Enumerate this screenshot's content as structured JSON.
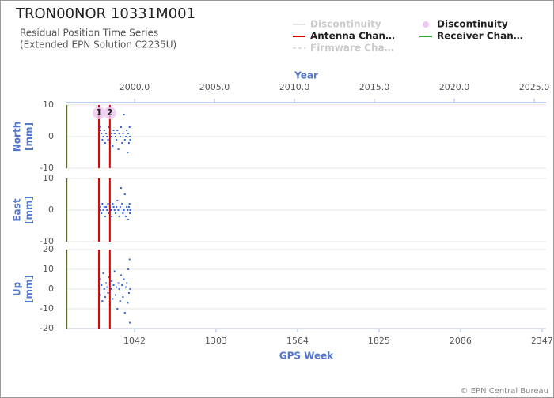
{
  "chart_data": {
    "type": "scatter",
    "title": "TRON00NOR 10331M001",
    "subtitle": [
      "Residual Position Time Series",
      "(Extended EPN Solution C2235U)"
    ],
    "legend": [
      {
        "name": "Discontinuity",
        "color": "#e6e6e6",
        "marker": "line",
        "active": false
      },
      {
        "name": "Discontinuity",
        "color": "#ecc8f0",
        "marker": "circle",
        "active": true
      },
      {
        "name": "Antenna Chan…",
        "color": "#e00000",
        "marker": "line",
        "active": true
      },
      {
        "name": "Receiver Chan…",
        "color": "#33aa33",
        "marker": "line",
        "active": true
      },
      {
        "name": "Firmware Cha…",
        "color": "#e0e0e0",
        "marker": "dash",
        "active": false
      }
    ],
    "xlabel": "GPS Week",
    "xlim": [
      824,
      2360
    ],
    "xticks": [
      1042,
      1303,
      1564,
      1825,
      2086,
      2347
    ],
    "x2label": "Year",
    "x2lim": [
      1995.74,
      2025.74
    ],
    "x2ticks": [
      {
        "value": 2000,
        "label": "2000.0"
      },
      {
        "value": 2005,
        "label": "2005.0"
      },
      {
        "value": 2010,
        "label": "2010.0"
      },
      {
        "value": 2015,
        "label": "2015.0"
      },
      {
        "value": 2020,
        "label": "2020.0"
      },
      {
        "value": 2025,
        "label": "2025.0"
      }
    ],
    "antenna_changes": {
      "x": [
        928,
        963
      ],
      "labels": [
        "1",
        "2"
      ],
      "color": "#e00000",
      "marker_color": "#ecc8f0"
    },
    "receiver_changes": {
      "x": [
        825
      ],
      "color": "#556b2f"
    },
    "point_color": "#3366dd",
    "grid": true,
    "x": [
      930,
      933,
      936,
      939,
      942,
      945,
      948,
      951,
      954,
      957,
      960,
      963,
      966,
      969,
      972,
      975,
      978,
      981,
      984,
      987,
      990,
      993,
      996,
      999,
      1002,
      1005,
      1008,
      1011,
      1014,
      1017,
      1020,
      1022,
      1024,
      1026,
      1027,
      1028
    ],
    "panels": [
      {
        "ylabel": "North",
        "yunit": "[mm]",
        "ylim": [
          -10,
          10
        ],
        "yticks": [
          -10,
          0,
          10
        ],
        "values": [
          3,
          2,
          1,
          -1,
          0,
          2,
          -2,
          1,
          0,
          -1,
          3,
          -2,
          0,
          1,
          -3,
          2,
          1,
          0,
          -1,
          2,
          -4,
          1,
          0,
          3,
          -2,
          1,
          7,
          -1,
          0,
          2,
          -5,
          1,
          -2,
          3,
          0,
          -1
        ]
      },
      {
        "ylabel": "East",
        "yunit": "[mm]",
        "ylim": [
          -10,
          10
        ],
        "yticks": [
          -10,
          0,
          10
        ],
        "values": [
          1,
          0,
          -1,
          2,
          0,
          1,
          -2,
          1,
          0,
          2,
          -1,
          1,
          0,
          -2,
          2,
          1,
          0,
          -1,
          1,
          3,
          0,
          -2,
          1,
          7,
          2,
          -1,
          0,
          5,
          -2,
          1,
          0,
          -3,
          1,
          2,
          -1,
          0
        ]
      },
      {
        "ylabel": "Up",
        "yunit": "[mm]",
        "ylim": [
          -20,
          20
        ],
        "yticks": [
          -20,
          -10,
          0,
          10,
          20
        ],
        "values": [
          5,
          -3,
          2,
          -6,
          8,
          0,
          -4,
          3,
          1,
          -2,
          6,
          -8,
          0,
          4,
          -5,
          2,
          9,
          -3,
          1,
          -10,
          3,
          0,
          -6,
          7,
          2,
          -4,
          5,
          -12,
          1,
          3,
          -7,
          10,
          -2,
          15,
          -17,
          0
        ]
      }
    ],
    "footer": "© EPN Central Bureau"
  }
}
